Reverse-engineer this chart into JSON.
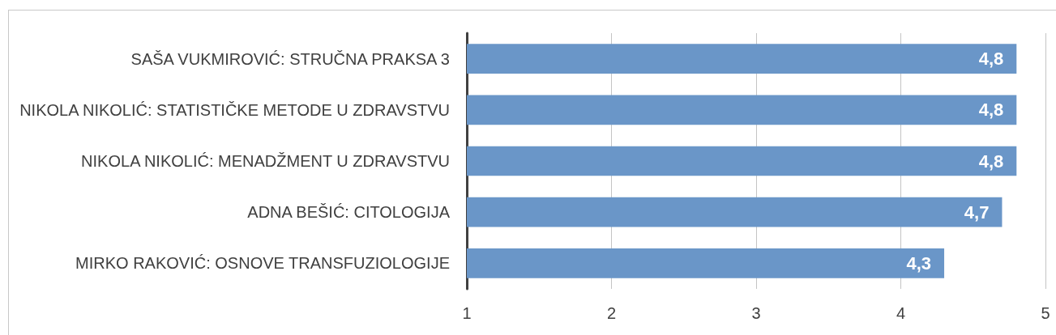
{
  "chart_data": {
    "type": "bar",
    "orientation": "horizontal",
    "categories": [
      "SAŠA VUKMIROVIĆ: STRUČNA PRAKSA 3",
      "NIKOLA NIKOLIĆ: STATISTIČKE METODE U ZDRAVSTVU",
      "NIKOLA NIKOLIĆ: MENADŽMENT U ZDRAVSTVU",
      "ADNA BEŠIĆ: CITOLOGIJA",
      "MIRKO RAKOVIĆ: OSNOVE TRANSFUZIOLOGIJE"
    ],
    "values": [
      4.8,
      4.8,
      4.8,
      4.7,
      4.3
    ],
    "color": "#6a96c8",
    "value_labels": [
      "4,8",
      "4,8",
      "4,8",
      "4,7",
      "4,3"
    ],
    "xlim": [
      1,
      5
    ],
    "xticks": [
      1,
      2,
      3,
      4,
      5
    ],
    "grid": "x"
  }
}
